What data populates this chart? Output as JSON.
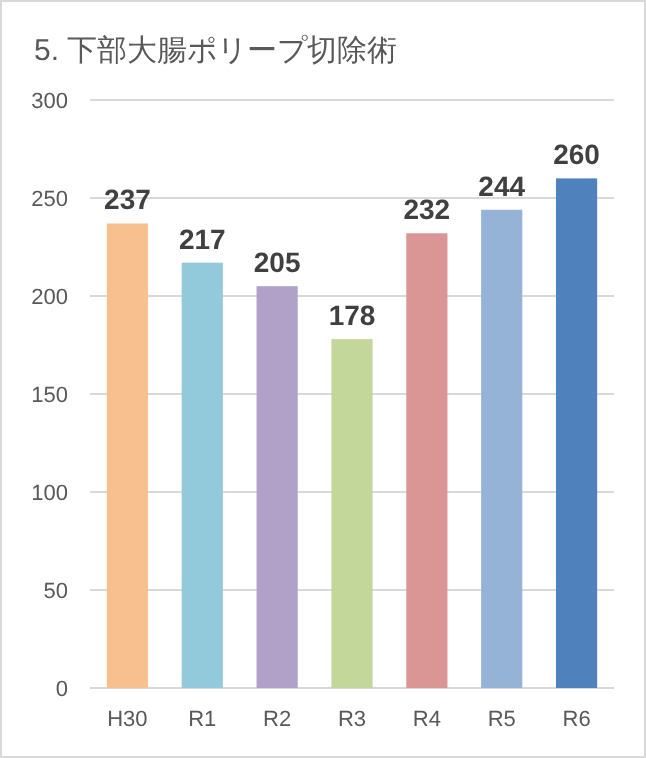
{
  "chart_data": {
    "type": "bar",
    "title": "5. 下部大腸ポリープ切除術",
    "categories": [
      "H30",
      "R1",
      "R2",
      "R3",
      "R4",
      "R5",
      "R6"
    ],
    "values": [
      237,
      217,
      205,
      178,
      232,
      244,
      260
    ],
    "colors": [
      "#f9c08f",
      "#93cadb",
      "#b1a0c7",
      "#c4d79b",
      "#da9694",
      "#95b3d7",
      "#4f81bd"
    ],
    "ylim": [
      0,
      300
    ],
    "yticks": [
      0,
      50,
      100,
      150,
      200,
      250,
      300
    ],
    "grid": "y",
    "data_labels": true
  }
}
